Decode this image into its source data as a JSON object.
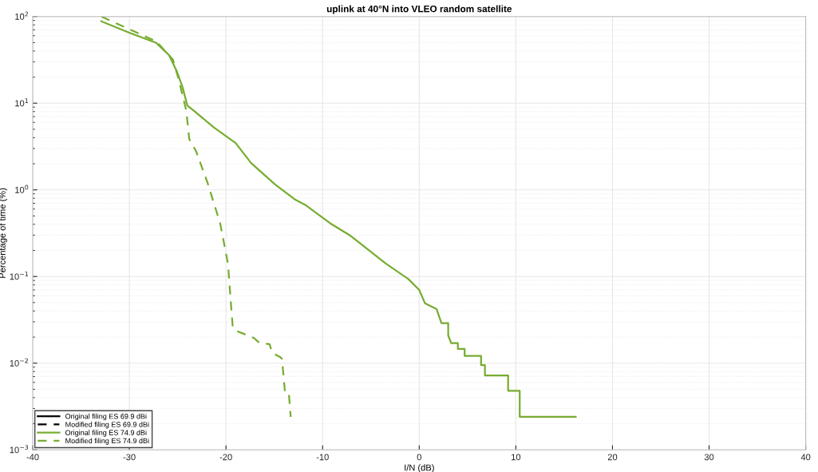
{
  "chart_data": {
    "type": "line",
    "title": "uplink at 40°N into VLEO random satellite",
    "xlabel": "I/N (dB)",
    "ylabel": "Percentage of time (%)",
    "log": "y",
    "grid": true,
    "legend": "bottom left",
    "marker": "none",
    "xlim": [
      -40,
      40
    ],
    "xticks": [
      -40,
      -30,
      -20,
      -10,
      0,
      10,
      20,
      30,
      40
    ],
    "ylim": [
      0.001,
      100
    ],
    "yticks": [
      {
        "value": 0.001,
        "label": "10$^{−3}$"
      },
      {
        "value": 0.01,
        "label": "10$^{−2}$"
      },
      {
        "value": 0.1,
        "label": "10$^{−1}$"
      },
      {
        "value": 1,
        "label": "10$^{0}$"
      },
      {
        "value": 10,
        "label": "10$^{1}$"
      },
      {
        "value": 100,
        "label": "10$^{2}$"
      }
    ],
    "series": [
      {
        "name": "Original filing ES 69.9 dBi",
        "color": "#000000",
        "line_style": "solid"
      },
      {
        "name": "Modified filing ES 69.9 dBi",
        "color": "#000000",
        "line_style": "dashed"
      },
      {
        "name": "Original filing ES 74.9 dBi",
        "color": "#77ac30",
        "line_style": "solid",
        "x": [
          -32.9,
          -30.0,
          -27.2,
          -25.9,
          -25.1,
          -24.5,
          -24.0,
          -23.5,
          -21.3,
          -19.0,
          -17.4,
          -14.9,
          -12.9,
          -11.7,
          -9.2,
          -7.2,
          -5.1,
          -3.5,
          -1.1,
          0,
          0.6,
          1.8,
          2.3,
          3.0,
          3.0,
          3.3,
          4.0,
          4.0,
          4.7,
          4.7,
          6.4,
          6.4,
          6.8,
          6.8,
          9.2,
          9.2,
          10.4,
          10.4,
          16.2
        ],
        "values": [
          88,
          65,
          49.5,
          36,
          23.5,
          15.4,
          9.4,
          8.5,
          5.3,
          3.47,
          2.04,
          1.15,
          0.78,
          0.66,
          0.41,
          0.3,
          0.196,
          0.142,
          0.093,
          0.07,
          0.049,
          0.042,
          0.029,
          0.029,
          0.021,
          0.017,
          0.017,
          0.0146,
          0.0146,
          0.0121,
          0.0121,
          0.0095,
          0.0095,
          0.0072,
          0.0072,
          0.0048,
          0.0048,
          0.0024,
          0.0024
        ]
      },
      {
        "name": "Modified filing ES 74.9 dBi",
        "color": "#77ac30",
        "line_style": "dashed",
        "x": [
          -32.9,
          -27.2,
          -25.5,
          -24.9,
          -24.1,
          -23.8,
          -23.1,
          -21.9,
          -20.6,
          -19.8,
          -19.3,
          -19.0,
          -17.1,
          -16.5,
          -15.5,
          -15.2,
          -14.4,
          -14.2,
          -13.9,
          -13.5,
          -13.3
        ],
        "values": [
          100,
          51.6,
          32,
          19,
          8.1,
          3.86,
          2.8,
          1.2,
          0.41,
          0.142,
          0.026,
          0.0238,
          0.0195,
          0.017,
          0.0166,
          0.0131,
          0.0118,
          0.0112,
          0.0047,
          0.0046,
          0.0024
        ]
      }
    ]
  }
}
